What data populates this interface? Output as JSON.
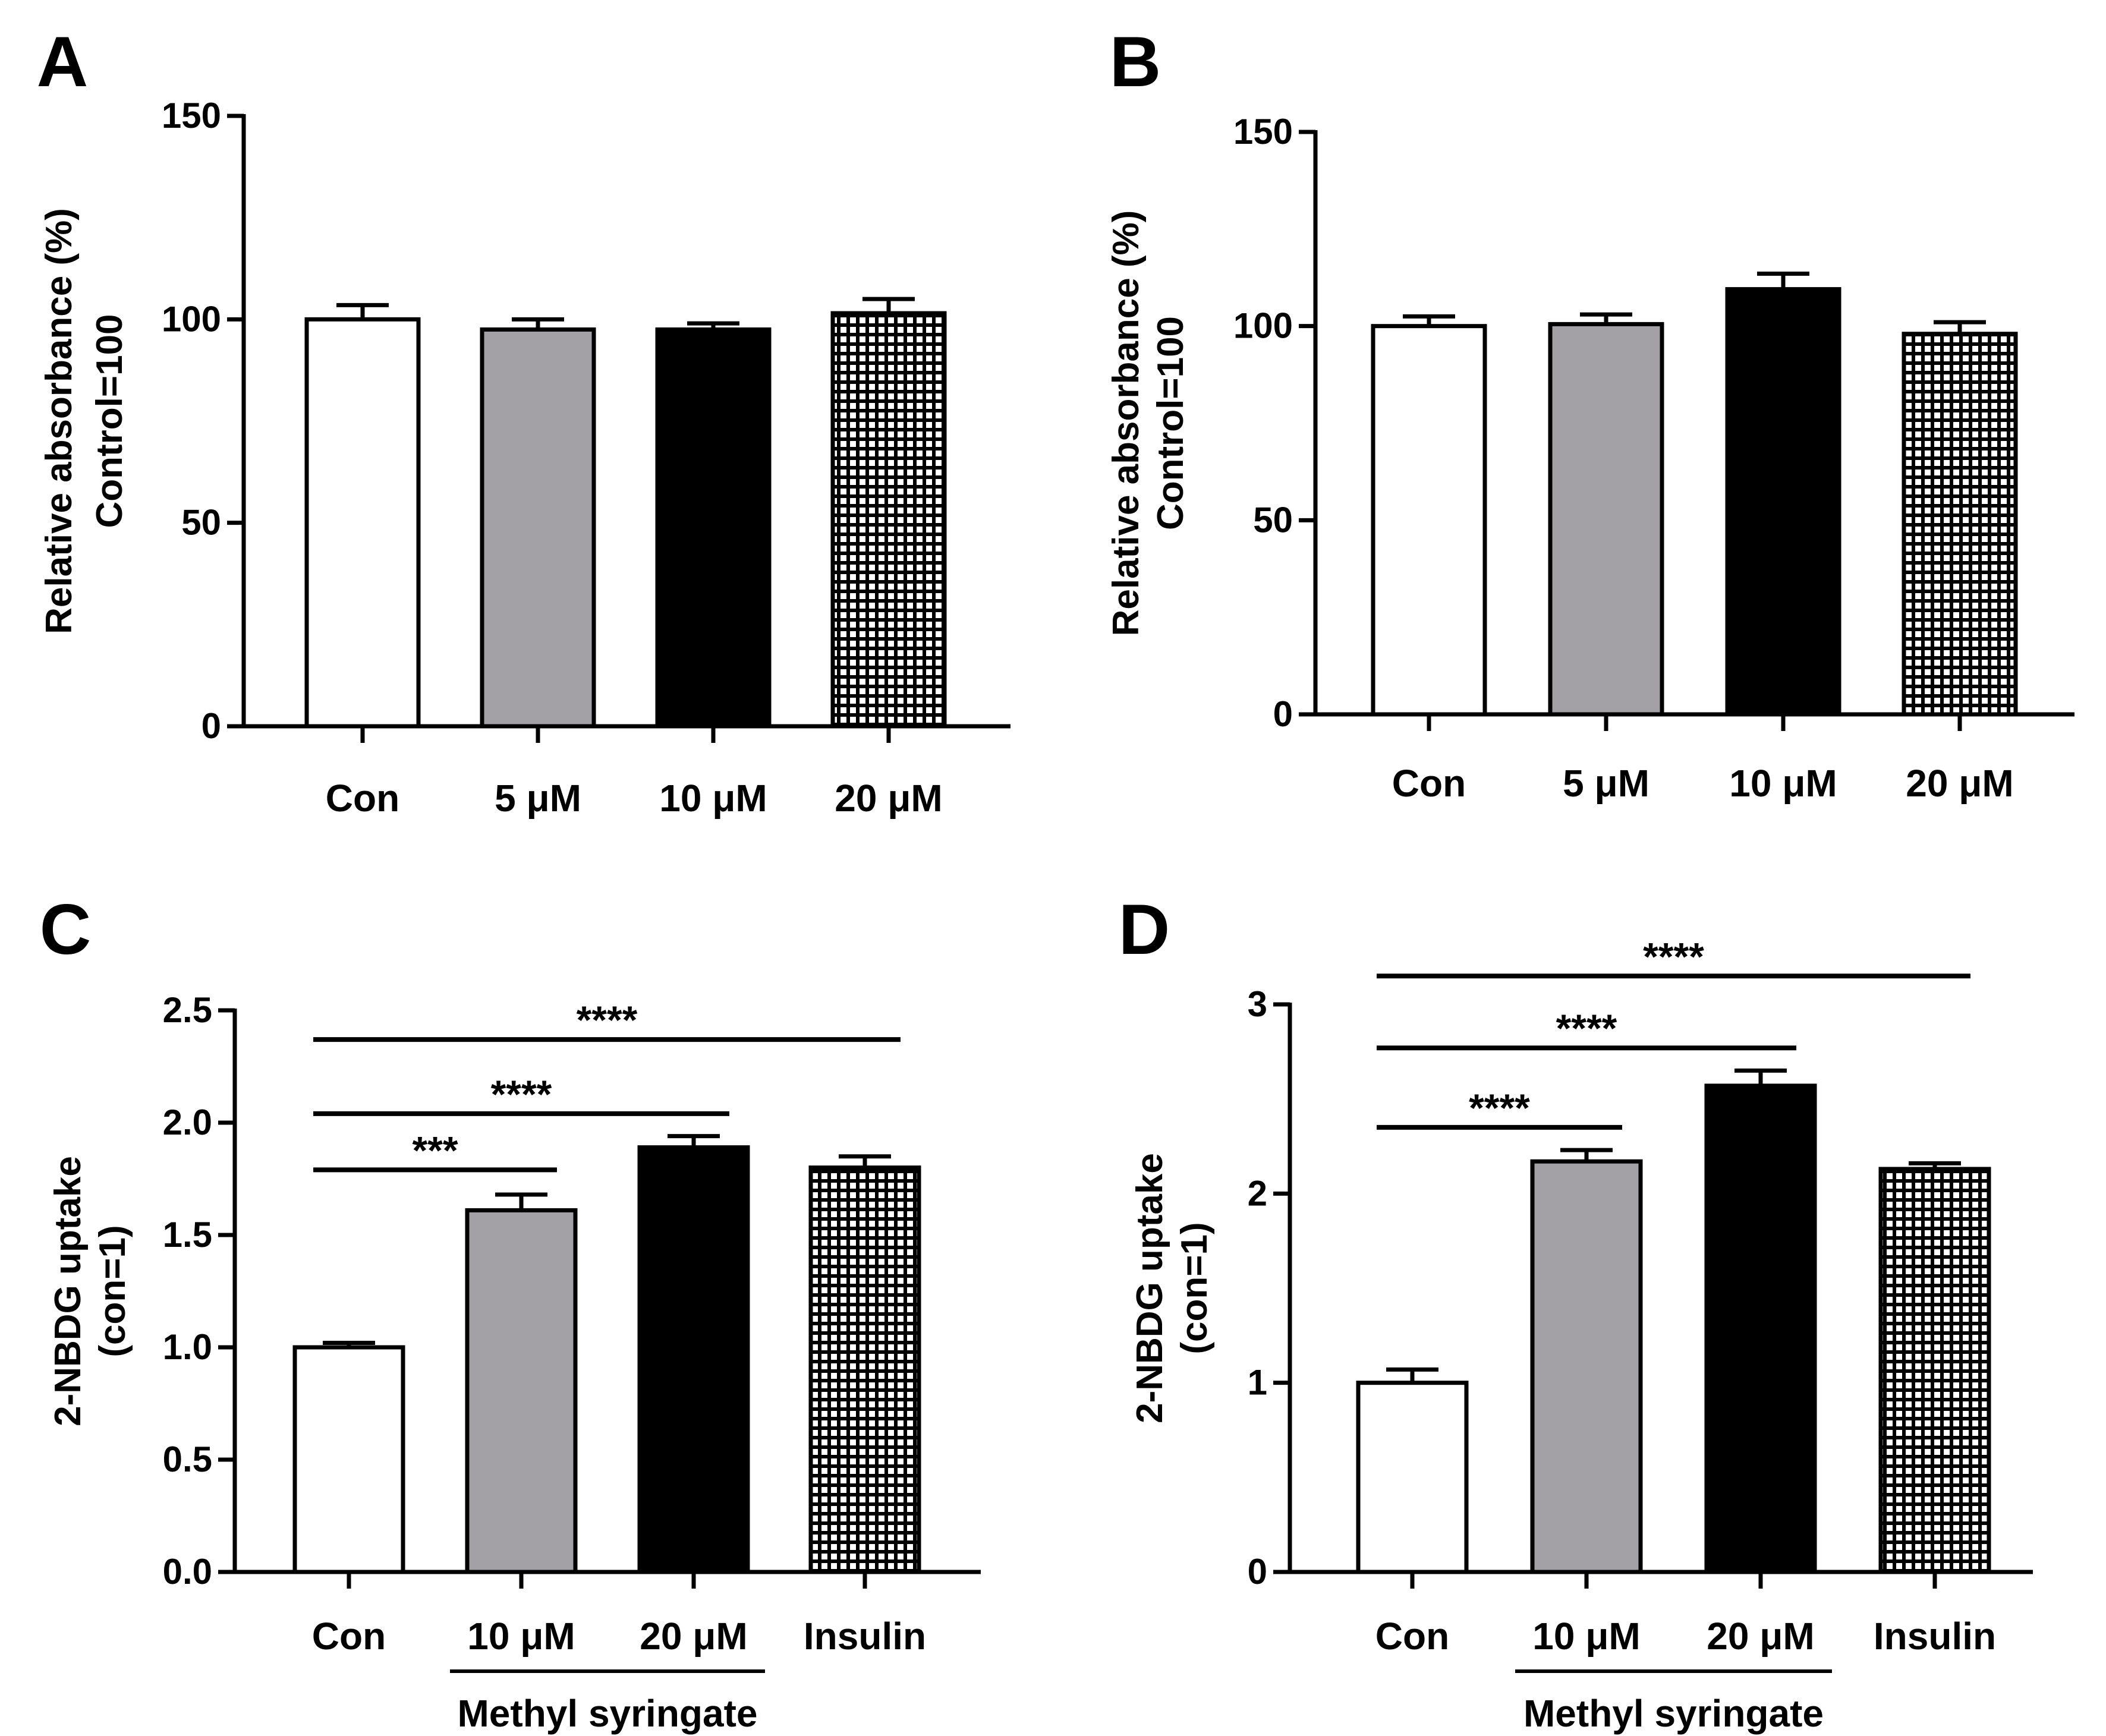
{
  "colors": {
    "white": "#ffffff",
    "gray": "#a3a1a6",
    "black": "#000000",
    "axis": "#000000"
  },
  "chart_data": [
    {
      "id": "A",
      "panel_label": "A",
      "type": "bar",
      "ylabel_line1": "Relative absorbance (%)",
      "ylabel_line2": "Control=100",
      "ylim": [
        0,
        150
      ],
      "yticks": [
        "0",
        "50",
        "100",
        "150"
      ],
      "categories": [
        "Con",
        "5 μM",
        "10 μM",
        "20 μM"
      ],
      "values": [
        100,
        97.5,
        97.5,
        101.5
      ],
      "errors": [
        3.5,
        2.5,
        1.5,
        3.5
      ],
      "fills": [
        "white",
        "gray",
        "black",
        "hatch"
      ],
      "significance": [],
      "group_label": ""
    },
    {
      "id": "B",
      "panel_label": "B",
      "type": "bar",
      "ylabel_line1": "Relative absorbance (%)",
      "ylabel_line2": "Control=100",
      "ylim": [
        0,
        150
      ],
      "yticks": [
        "0",
        "50",
        "100",
        "150"
      ],
      "categories": [
        "Con",
        "5 μM",
        "10 μM",
        "20 μM"
      ],
      "values": [
        100,
        100.5,
        109.5,
        98
      ],
      "errors": [
        2.5,
        2.5,
        4,
        3
      ],
      "fills": [
        "white",
        "gray",
        "black",
        "hatch"
      ],
      "significance": [],
      "group_label": ""
    },
    {
      "id": "C",
      "panel_label": "C",
      "type": "bar",
      "ylabel_line1": "2-NBDG uptake",
      "ylabel_line2": "(con=1)",
      "ylim": [
        0,
        2.5
      ],
      "yticks": [
        "0.0",
        "0.5",
        "1.0",
        "1.5",
        "2.0",
        "2.5"
      ],
      "categories": [
        "Con",
        "10 μM",
        "20 μM",
        "Insulin"
      ],
      "values": [
        1.0,
        1.61,
        1.89,
        1.8
      ],
      "errors": [
        0.02,
        0.07,
        0.05,
        0.05
      ],
      "fills": [
        "white",
        "gray",
        "black",
        "hatch"
      ],
      "significance": [
        {
          "from": 0,
          "to": 1,
          "y": 1.79,
          "label": "***"
        },
        {
          "from": 0,
          "to": 2,
          "y": 2.04,
          "label": "****"
        },
        {
          "from": 0,
          "to": 3,
          "y": 2.37,
          "label": "****"
        }
      ],
      "group_label": "Methyl syringate",
      "group_range": [
        1,
        2
      ]
    },
    {
      "id": "D",
      "panel_label": "D",
      "type": "bar",
      "ylabel_line1": "2-NBDG uptake",
      "ylabel_line2": "(con=1)",
      "ylim": [
        0,
        3
      ],
      "yticks": [
        "0",
        "1",
        "2",
        "3"
      ],
      "categories": [
        "Con",
        "10 μM",
        "20 μM",
        "Insulin"
      ],
      "values": [
        1.0,
        2.17,
        2.57,
        2.13
      ],
      "errors": [
        0.07,
        0.06,
        0.08,
        0.03
      ],
      "fills": [
        "white",
        "gray",
        "black",
        "hatch"
      ],
      "significance": [
        {
          "from": 0,
          "to": 1,
          "y": 2.35,
          "label": "****"
        },
        {
          "from": 0,
          "to": 2,
          "y": 2.77,
          "label": "****"
        },
        {
          "from": 0,
          "to": 3,
          "y": 3.15,
          "label": "****"
        }
      ],
      "group_label": "Methyl syringate",
      "group_range": [
        1,
        2
      ]
    }
  ]
}
